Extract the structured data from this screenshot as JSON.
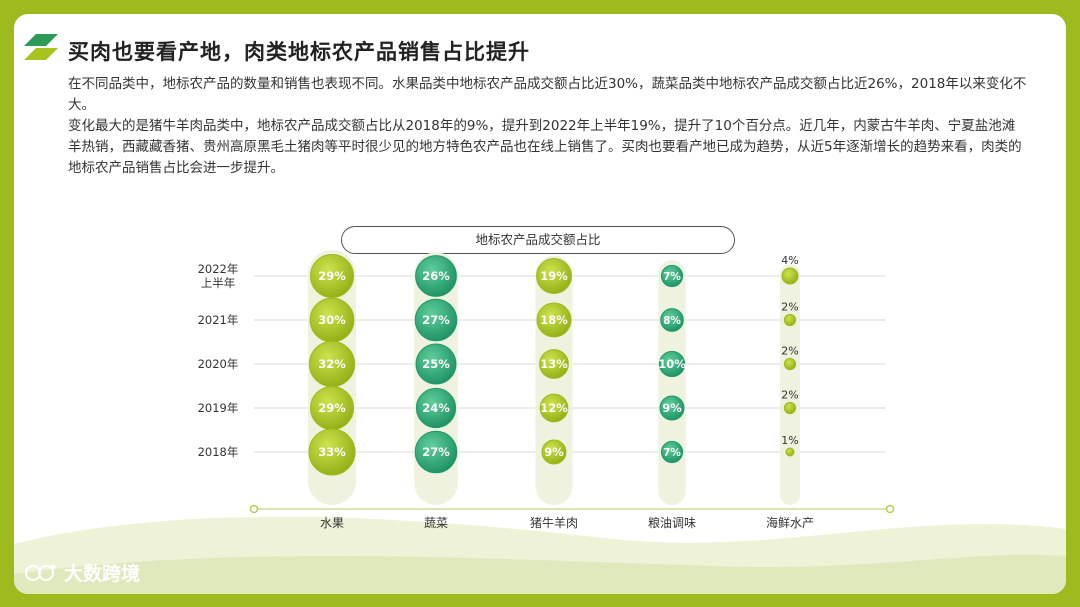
{
  "page": {
    "title": "买肉也要看产地，肉类地标农产品销售占比提升",
    "paragraph1": "在不同品类中，地标农产品的数量和销售也表现不同。水果品类中地标农产品成交额占比近30%，蔬菜品类中地标农产品成交额占比近26%，2018年以来变化不大。",
    "paragraph2": "变化最大的是猪牛羊肉品类中，地标农产品成交额占比从2018年的9%，提升到2022年上半年19%，提升了10个百分点。近几年，内蒙古牛羊肉、宁夏盐池滩羊热销，西藏藏香猪、贵州高原黑毛土猪肉等平时很少见的地方特色农产品也在线上销售了。买肉也要看产地已成为趋势，从近5年逐渐增长的趋势来看，肉类的地标农产品销售占比会进一步提升。",
    "logo_text": "大数跨境"
  },
  "chart_data": {
    "type": "scatter",
    "title": "地标农产品成交额占比",
    "unit": "%",
    "rows": [
      "2022年上半年",
      "2021年",
      "2020年",
      "2019年",
      "2018年"
    ],
    "row_lines": [
      [
        "2022年",
        "上半年"
      ],
      [
        "2021年"
      ],
      [
        "2020年"
      ],
      [
        "2019年"
      ],
      [
        "2018年"
      ]
    ],
    "categories": [
      "水果",
      "蔬菜",
      "猪牛羊肉",
      "粮油调味",
      "海鲜水产"
    ],
    "values": [
      [
        29,
        30,
        32,
        29,
        33
      ],
      [
        26,
        27,
        25,
        24,
        27
      ],
      [
        19,
        18,
        13,
        12,
        9
      ],
      [
        7,
        8,
        10,
        9,
        7
      ],
      [
        4,
        2,
        2,
        2,
        1
      ]
    ],
    "label_above": [
      false,
      false,
      false,
      false,
      true
    ],
    "colors": {
      "lime": "#9dbb1e",
      "lime_light": "#c7dc4a",
      "teal": "#1f9a6a",
      "teal_light": "#5cc994",
      "capsule": "#eef2df",
      "grid": "#d9d9d9"
    },
    "grid": true
  }
}
